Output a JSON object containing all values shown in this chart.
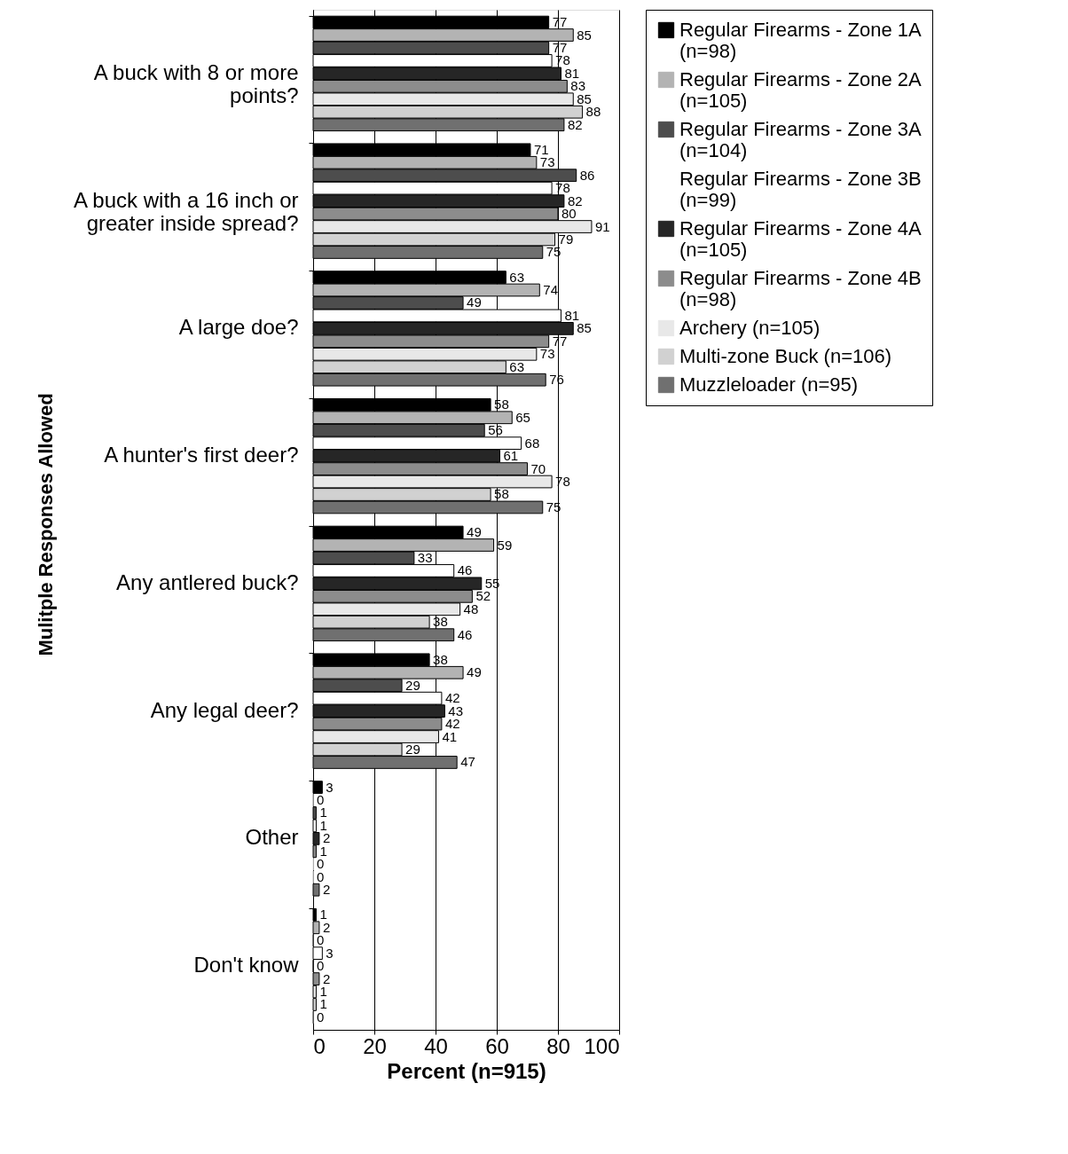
{
  "chart_data": {
    "type": "bar",
    "orientation": "horizontal",
    "xlabel": "Percent (n=915)",
    "ylabel": "Mulitple Responses Allowed",
    "categories": [
      "A buck with 8 or more points?",
      "A buck with a 16 inch or greater inside spread?",
      "A large doe?",
      "A hunter's first deer?",
      "Any antlered buck?",
      "Any legal deer?",
      "Other",
      "Don't know"
    ],
    "series": [
      {
        "name": "Regular Firearms - Zone 1A (n=98)",
        "color": "#000000",
        "values": [
          77,
          71,
          63,
          58,
          49,
          38,
          3,
          1
        ]
      },
      {
        "name": "Regular Firearms - Zone 2A (n=105)",
        "color": "#b3b3b3",
        "values": [
          85,
          73,
          74,
          65,
          59,
          49,
          0,
          2
        ]
      },
      {
        "name": "Regular Firearms - Zone 3A (n=104)",
        "color": "#4d4d4d",
        "values": [
          77,
          86,
          49,
          56,
          33,
          29,
          1,
          0
        ]
      },
      {
        "name": "Regular Firearms - Zone 3B (n=99)",
        "color": "#ffffff",
        "values": [
          78,
          78,
          81,
          68,
          46,
          42,
          1,
          3
        ]
      },
      {
        "name": "Regular Firearms - Zone 4A (n=105)",
        "color": "#262626",
        "values": [
          81,
          82,
          85,
          61,
          55,
          43,
          2,
          0
        ]
      },
      {
        "name": "Regular Firearms - Zone 4B (n=98)",
        "color": "#8c8c8c",
        "values": [
          83,
          80,
          77,
          70,
          52,
          42,
          1,
          2
        ]
      },
      {
        "name": "Archery (n=105)",
        "color": "#e8e8e8",
        "values": [
          85,
          91,
          73,
          78,
          48,
          41,
          0,
          1
        ]
      },
      {
        "name": "Multi-zone Buck (n=106)",
        "color": "#d1d1d1",
        "values": [
          88,
          79,
          63,
          58,
          38,
          29,
          0,
          1
        ]
      },
      {
        "name": "Muzzleloader (n=95)",
        "color": "#707070",
        "values": [
          82,
          75,
          76,
          75,
          46,
          47,
          2,
          0
        ]
      }
    ],
    "xlim": [
      0,
      100
    ],
    "xticks": [
      0,
      20,
      40,
      60,
      80,
      100
    ],
    "grid": "x",
    "legend": "right",
    "data_labels": true
  }
}
